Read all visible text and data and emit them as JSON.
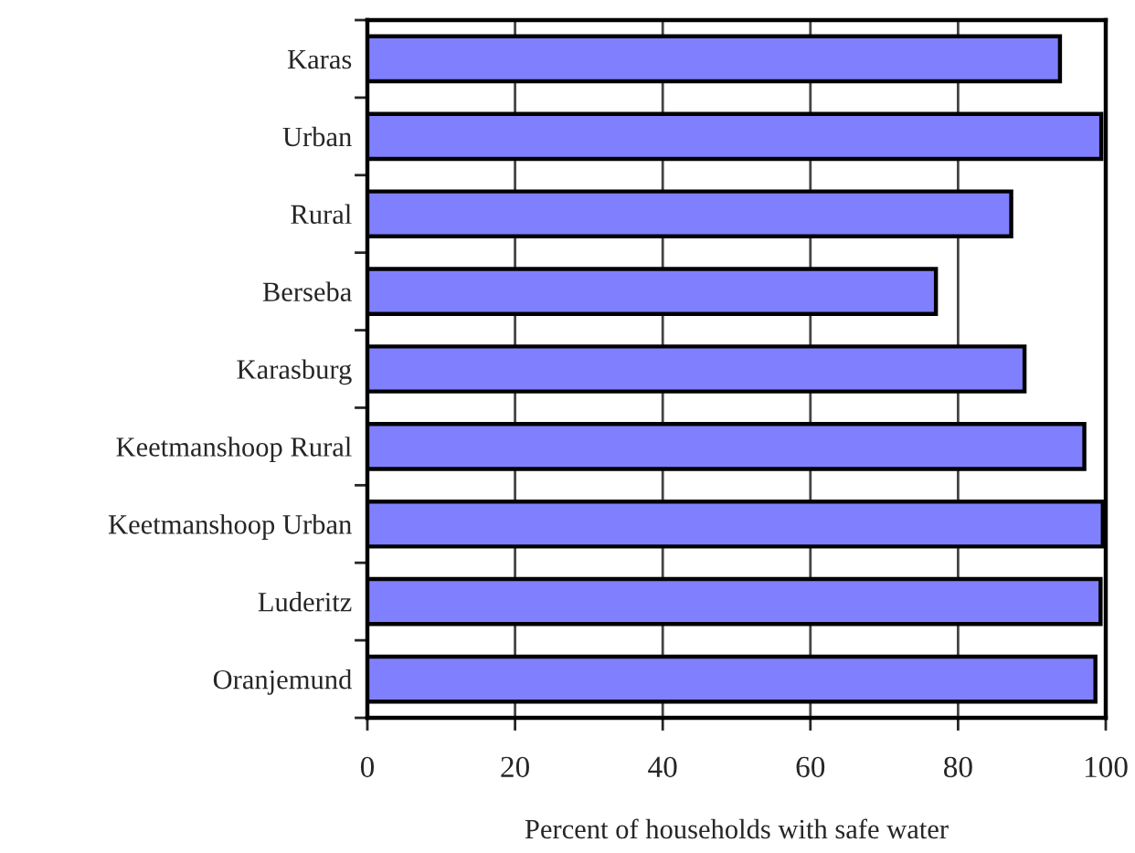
{
  "chart_data": {
    "type": "bar",
    "orientation": "horizontal",
    "xlabel": "Percent of households with safe water",
    "categories": [
      "Karas",
      "Urban",
      "Rural",
      "Berseba",
      "Karasburg",
      "Keetmanshoop Rural",
      "Keetmanshoop Urban",
      "Luderitz",
      "Oranjemund"
    ],
    "values": [
      93.8,
      99.4,
      87.2,
      77.0,
      89.0,
      97.1,
      99.6,
      99.3,
      98.6
    ],
    "color": "#8080ff",
    "xlim": [
      0,
      100
    ],
    "xticks": [
      0,
      20,
      40,
      60,
      80,
      100
    ],
    "grid": "x",
    "legend": false
  }
}
